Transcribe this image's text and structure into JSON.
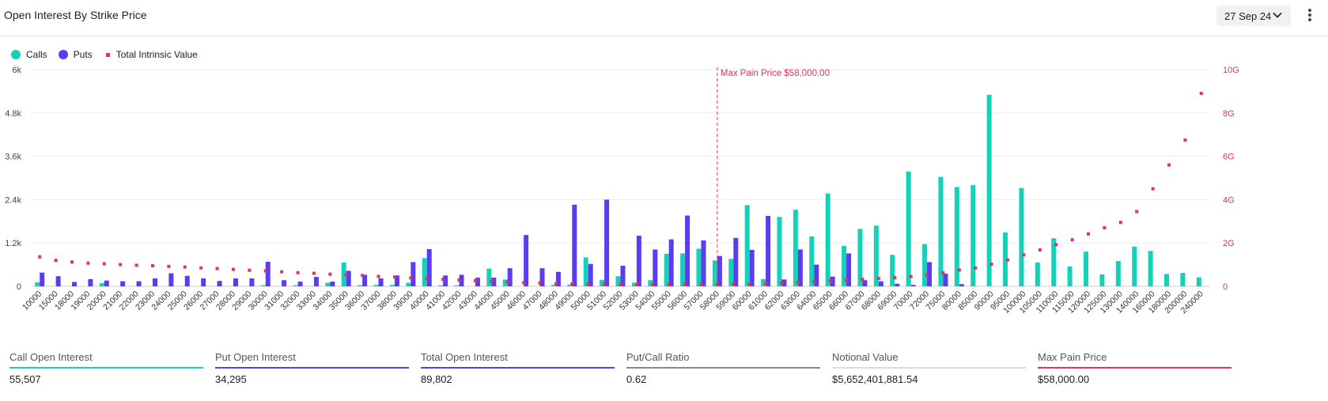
{
  "header": {
    "title": "Open Interest By Strike Price",
    "date": "27 Sep 24"
  },
  "colors": {
    "calls": "#14d2b8",
    "puts": "#5b3cf0",
    "intrinsic": "#e8305f",
    "grid": "#eeeeee"
  },
  "legend": [
    {
      "label": "Calls",
      "color": "#14d2b8",
      "shape": "circle"
    },
    {
      "label": "Puts",
      "color": "#5b3cf0",
      "shape": "circle"
    },
    {
      "label": "Total Intrinsic Value",
      "color": "#e8305f",
      "shape": "square"
    }
  ],
  "stats": [
    {
      "label": "Call Open Interest",
      "value": "55,507",
      "color": "#14d2b8"
    },
    {
      "label": "Put Open Interest",
      "value": "34,295",
      "color": "#5b3cf0"
    },
    {
      "label": "Total Open Interest",
      "value": "89,802",
      "color": "#5b3cf0"
    },
    {
      "label": "Put/Call Ratio",
      "value": "0.62",
      "color": "#888888"
    },
    {
      "label": "Notional Value",
      "value": "$5,652,401,881.54",
      "color": "#dddddd"
    },
    {
      "label": "Max Pain Price",
      "value": "$58,000.00",
      "color": "#e8305f"
    }
  ],
  "chart_data": {
    "type": "bar",
    "categories": [
      "10000",
      "15000",
      "18000",
      "19000",
      "20000",
      "21000",
      "22000",
      "23000",
      "24000",
      "25000",
      "26000",
      "27000",
      "28000",
      "29000",
      "30000",
      "31000",
      "32000",
      "33000",
      "34000",
      "35000",
      "36000",
      "37000",
      "38000",
      "39000",
      "40000",
      "41000",
      "42000",
      "43000",
      "44000",
      "45000",
      "46000",
      "47000",
      "48000",
      "49000",
      "50000",
      "51000",
      "52000",
      "53000",
      "54000",
      "55000",
      "56000",
      "57000",
      "58000",
      "59000",
      "60000",
      "61000",
      "62000",
      "63000",
      "64000",
      "65000",
      "66000",
      "67000",
      "68000",
      "69000",
      "70000",
      "72000",
      "75000",
      "80000",
      "85000",
      "90000",
      "95000",
      "100000",
      "105000",
      "110000",
      "115000",
      "120000",
      "125000",
      "130000",
      "140000",
      "160000",
      "180000",
      "200000",
      "240000"
    ],
    "series": [
      {
        "name": "Calls",
        "axis": "left",
        "values": [
          110,
          0,
          0,
          0,
          90,
          0,
          0,
          0,
          0,
          0,
          0,
          0,
          0,
          0,
          30,
          0,
          30,
          0,
          100,
          660,
          30,
          40,
          40,
          100,
          780,
          30,
          30,
          0,
          490,
          190,
          0,
          0,
          40,
          50,
          800,
          180,
          280,
          100,
          170,
          900,
          910,
          1040,
          720,
          760,
          2250,
          200,
          1920,
          2120,
          1380,
          2570,
          1120,
          1590,
          1680,
          870,
          3180,
          1170,
          3030,
          2750,
          2800,
          5300,
          1490,
          2720,
          660,
          1330,
          550,
          960,
          330,
          700,
          1100,
          980,
          340,
          370,
          250
        ]
      },
      {
        "name": "Puts",
        "axis": "left",
        "values": [
          380,
          280,
          120,
          200,
          160,
          140,
          140,
          220,
          360,
          290,
          220,
          150,
          220,
          220,
          680,
          170,
          130,
          260,
          130,
          430,
          320,
          220,
          300,
          670,
          1030,
          300,
          320,
          240,
          240,
          500,
          1420,
          500,
          400,
          2260,
          620,
          2400,
          570,
          1400,
          1020,
          1300,
          1960,
          1270,
          840,
          1340,
          1010,
          1950,
          190,
          1020,
          600,
          270,
          910,
          170,
          140,
          70,
          40,
          670,
          350,
          60,
          0,
          0,
          0,
          0,
          0,
          0,
          0,
          0,
          0,
          0,
          0,
          0,
          0,
          0,
          0
        ]
      },
      {
        "name": "Total Intrinsic Value",
        "axis": "right",
        "type": "scatter",
        "values": [
          1.36,
          1.2,
          1.12,
          1.07,
          1.04,
          1.0,
          0.97,
          0.95,
          0.92,
          0.89,
          0.85,
          0.82,
          0.78,
          0.74,
          0.71,
          0.67,
          0.63,
          0.6,
          0.56,
          0.53,
          0.5,
          0.46,
          0.43,
          0.39,
          0.36,
          0.32,
          0.29,
          0.26,
          0.23,
          0.2,
          0.17,
          0.15,
          0.12,
          0.11,
          0.1,
          0.09,
          0.08,
          0.08,
          0.07,
          0.07,
          0.08,
          0.08,
          0.08,
          0.1,
          0.11,
          0.12,
          0.15,
          0.18,
          0.21,
          0.25,
          0.28,
          0.32,
          0.36,
          0.4,
          0.45,
          0.52,
          0.62,
          0.75,
          0.85,
          1.02,
          1.22,
          1.45,
          1.68,
          1.92,
          2.15,
          2.42,
          2.7,
          2.95,
          3.45,
          4.5,
          5.6,
          6.75,
          8.9
        ]
      }
    ],
    "left_axis": {
      "ticks": [
        "0",
        "1.2k",
        "2.4k",
        "3.6k",
        "4.8k",
        "6k"
      ],
      "ylim": [
        0,
        6000
      ]
    },
    "right_axis": {
      "ticks": [
        "0",
        "2G",
        "4G",
        "6G",
        "8G",
        "10G"
      ],
      "ylim": [
        0,
        10
      ]
    },
    "annotation": {
      "label": "Max Pain Price $58,000.00",
      "category": "58000"
    },
    "grid": true,
    "legend_position": "top-left"
  }
}
